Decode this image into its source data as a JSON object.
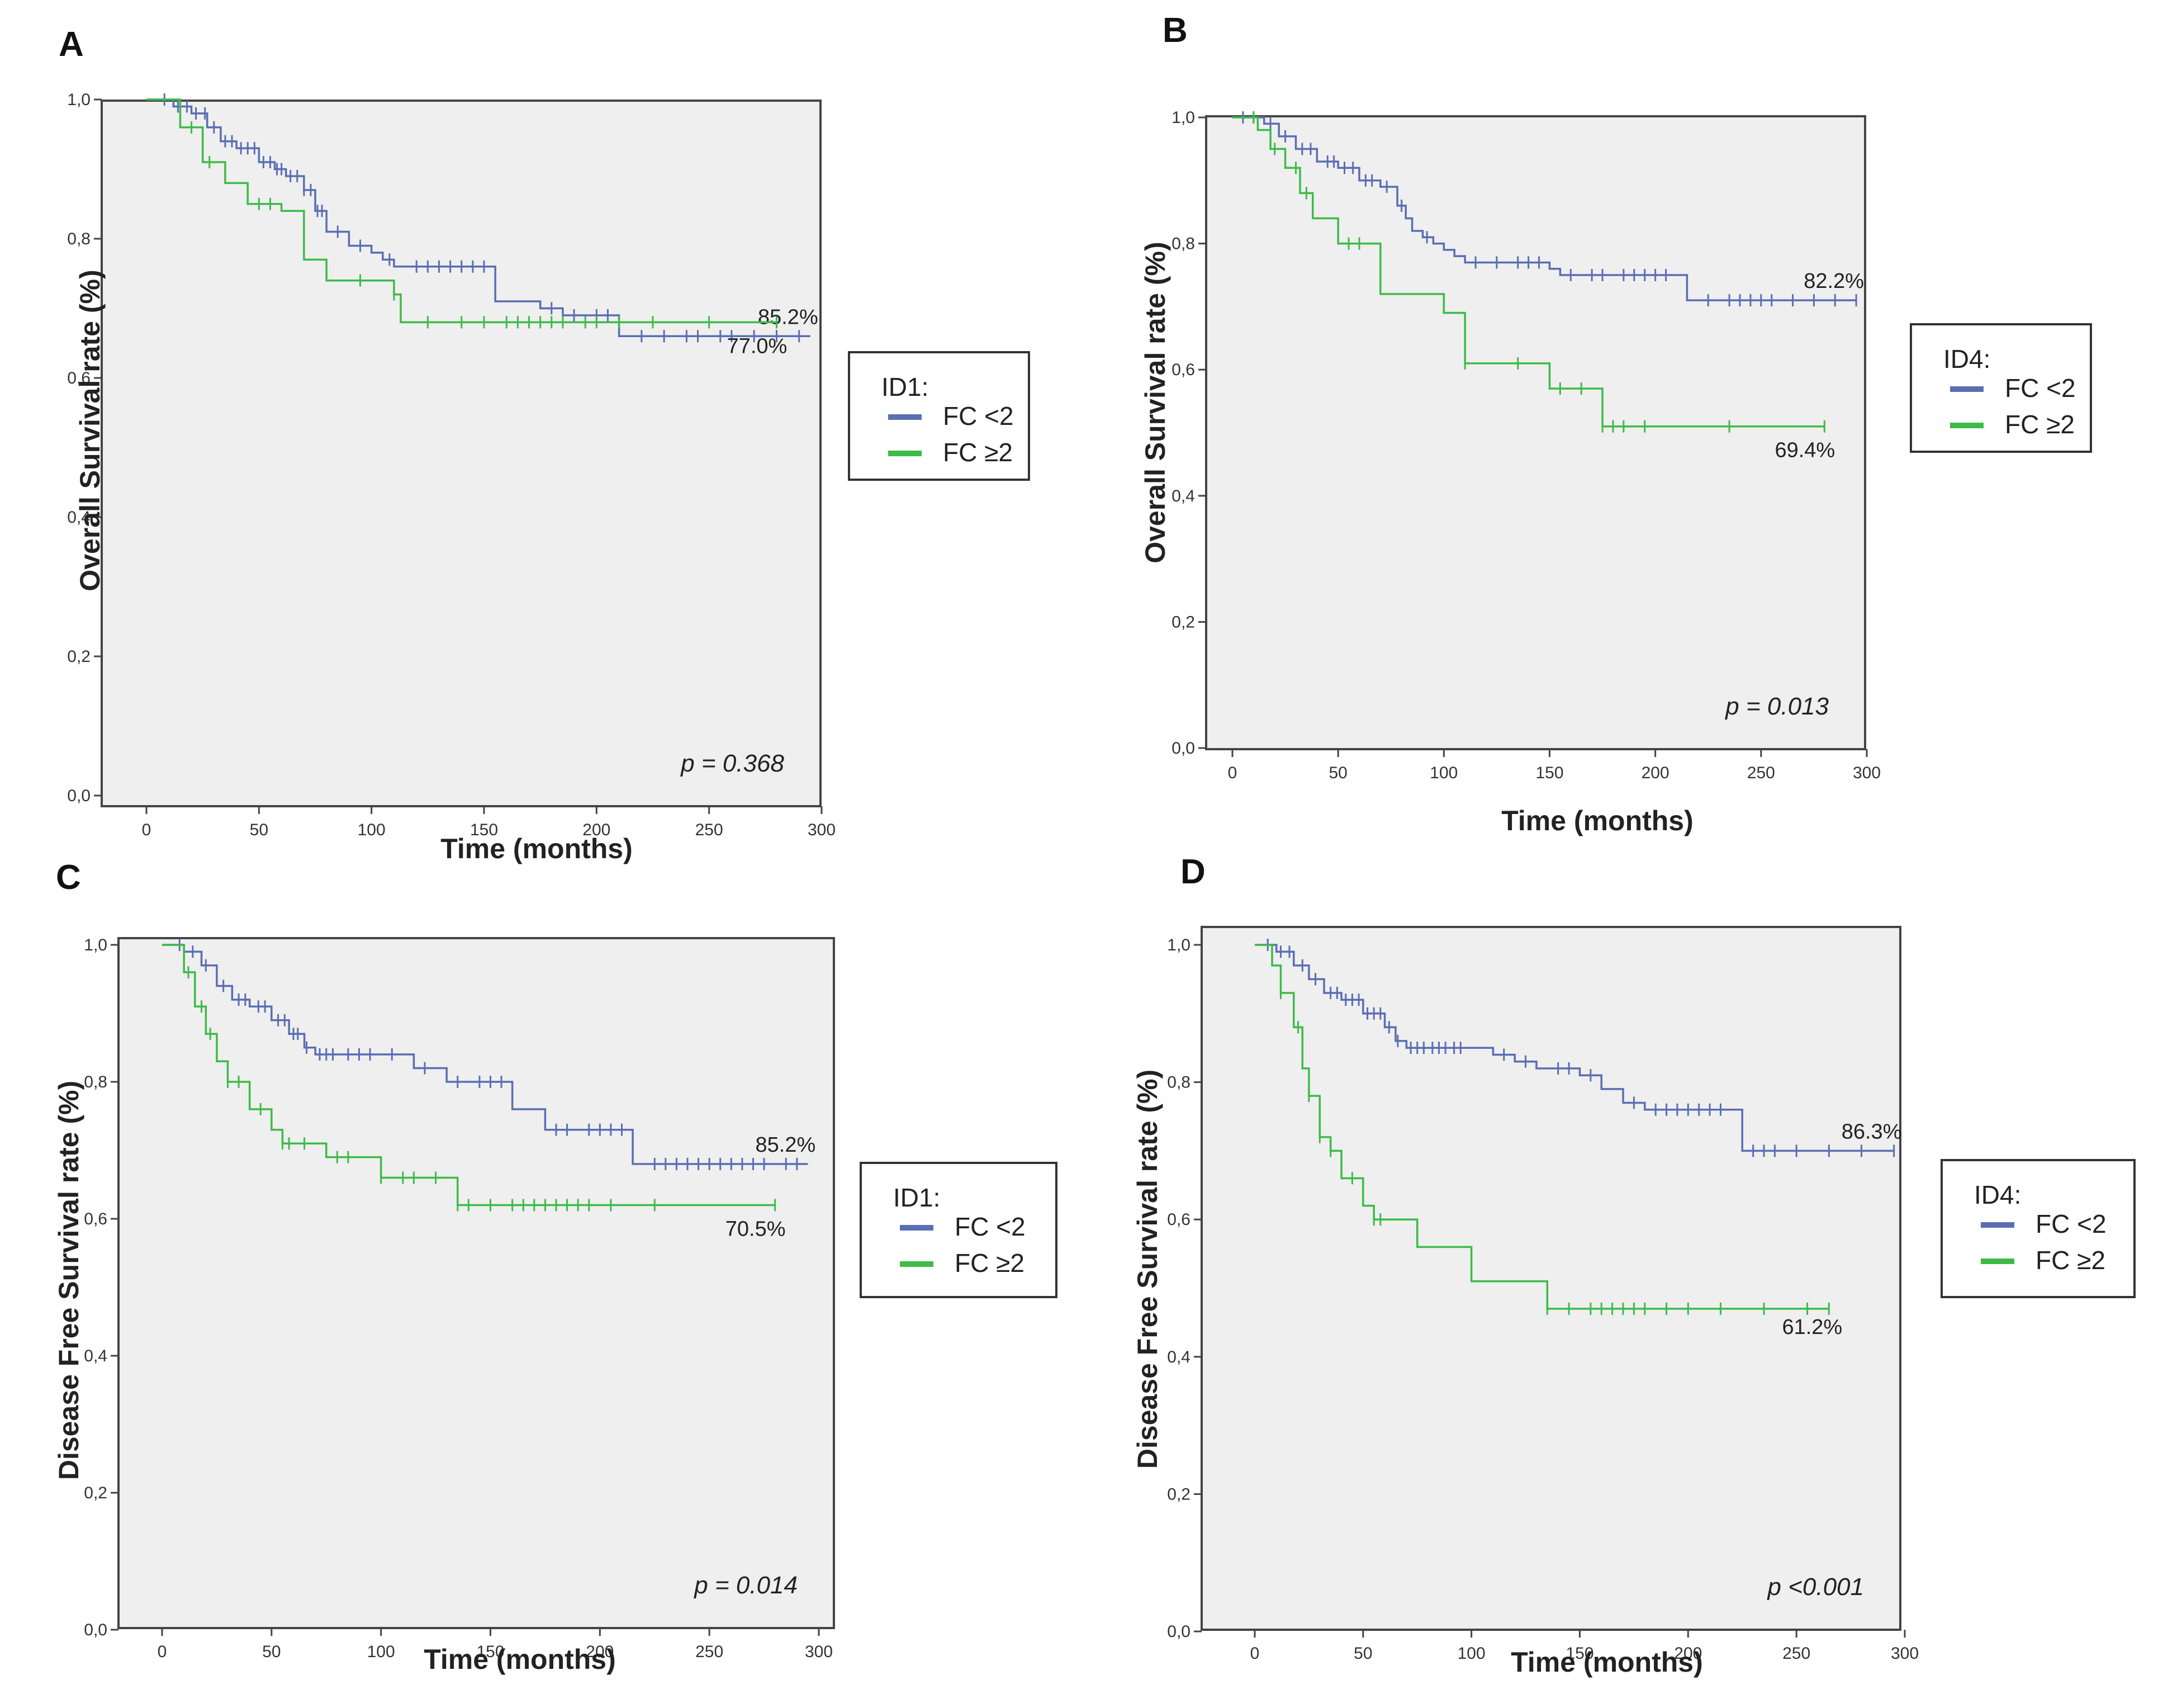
{
  "figure": {
    "panels": [
      {
        "letter": "A",
        "legend_title": "ID1:",
        "legend_items": [
          {
            "label": "FC <2",
            "color": "#5a6eb4"
          },
          {
            "label": "FC ≥2",
            "color": "#3dbb48"
          }
        ],
        "p_value": "p = 0.368"
      },
      {
        "letter": "B",
        "legend_title": "ID4:",
        "legend_items": [
          {
            "label": "FC <2",
            "color": "#5a6eb4"
          },
          {
            "label": "FC ≥2",
            "color": "#3dbb48"
          }
        ],
        "p_value": "p = 0.013"
      },
      {
        "letter": "C",
        "legend_title": "ID1:",
        "legend_items": [
          {
            "label": "FC <2",
            "color": "#5a6eb4"
          },
          {
            "label": "FC ≥2",
            "color": "#3dbb48"
          }
        ],
        "p_value": "p = 0.014"
      },
      {
        "letter": "D",
        "legend_title": "ID4:",
        "legend_items": [
          {
            "label": "FC <2",
            "color": "#5a6eb4"
          },
          {
            "label": "FC ≥2",
            "color": "#3dbb48"
          }
        ],
        "p_value": "p <0.001"
      }
    ]
  },
  "chart_data": [
    {
      "type": "line",
      "panel": "A",
      "step": true,
      "xlabel": "Time (months)",
      "ylabel": "Overall Survival rate (%)",
      "xlim": [
        0,
        300
      ],
      "ylim": [
        0,
        1
      ],
      "xticks": [
        "0",
        "50",
        "100",
        "150",
        "200",
        "250",
        "300"
      ],
      "yticks": [
        "0,0",
        "0,2",
        "0,4",
        "0,6",
        "0,8",
        "1,0"
      ],
      "series": [
        {
          "name": "FC <2",
          "color": "#5a6eb4",
          "end_label": "85.2%",
          "x": [
            0,
            12,
            20,
            27,
            33,
            40,
            50,
            57,
            62,
            70,
            75,
            80,
            90,
            100,
            105,
            110,
            150,
            155,
            175,
            185,
            195,
            210,
            295
          ],
          "y": [
            1.0,
            0.99,
            0.98,
            0.96,
            0.94,
            0.93,
            0.91,
            0.9,
            0.89,
            0.87,
            0.84,
            0.81,
            0.79,
            0.78,
            0.77,
            0.76,
            0.76,
            0.71,
            0.7,
            0.69,
            0.69,
            0.66,
            0.66
          ],
          "censor": [
            8,
            14,
            18,
            22,
            26,
            30,
            35,
            38,
            42,
            45,
            48,
            52,
            55,
            58,
            60,
            64,
            67,
            70,
            73,
            76,
            78,
            85,
            95,
            108,
            120,
            125,
            130,
            135,
            140,
            145,
            150,
            180,
            190,
            200,
            205,
            220,
            230,
            240,
            245,
            255,
            260,
            270,
            280,
            290
          ]
        },
        {
          "name": "FC ≥2",
          "color": "#3dbb48",
          "end_label": "77.0%",
          "x": [
            0,
            15,
            25,
            35,
            45,
            60,
            70,
            80,
            110,
            113,
            280
          ],
          "y": [
            1.0,
            0.96,
            0.91,
            0.88,
            0.85,
            0.84,
            0.77,
            0.74,
            0.72,
            0.68,
            0.68
          ],
          "censor": [
            20,
            28,
            50,
            55,
            95,
            110,
            125,
            140,
            150,
            160,
            165,
            170,
            175,
            180,
            185,
            195,
            200,
            210,
            225,
            250,
            280
          ]
        }
      ]
    },
    {
      "type": "line",
      "panel": "B",
      "step": true,
      "xlabel": "Time (months)",
      "ylabel": "Overall Survival rate (%)",
      "xlim": [
        0,
        300
      ],
      "ylim": [
        0,
        1
      ],
      "xticks": [
        "0",
        "50",
        "100",
        "150",
        "200",
        "250",
        "300"
      ],
      "yticks": [
        "0,0",
        "0,2",
        "0,4",
        "0,6",
        "0,8",
        "1,0"
      ],
      "series": [
        {
          "name": "FC <2",
          "color": "#5a6eb4",
          "end_label": "82.2%",
          "x": [
            0,
            15,
            22,
            30,
            40,
            50,
            60,
            70,
            78,
            82,
            85,
            90,
            95,
            100,
            105,
            110,
            120,
            130,
            150,
            155,
            160,
            210,
            215,
            295
          ],
          "y": [
            1.0,
            0.99,
            0.97,
            0.95,
            0.93,
            0.92,
            0.9,
            0.89,
            0.86,
            0.84,
            0.82,
            0.81,
            0.8,
            0.79,
            0.78,
            0.77,
            0.77,
            0.77,
            0.76,
            0.75,
            0.75,
            0.75,
            0.71,
            0.71
          ],
          "censor": [
            5,
            10,
            18,
            25,
            33,
            37,
            45,
            48,
            53,
            57,
            63,
            66,
            73,
            80,
            92,
            115,
            125,
            135,
            140,
            145,
            160,
            170,
            175,
            185,
            190,
            195,
            200,
            205,
            225,
            235,
            240,
            245,
            250,
            255,
            265,
            275,
            285,
            295
          ]
        },
        {
          "name": "FC ≥2",
          "color": "#3dbb48",
          "end_label": "69.4%",
          "x": [
            0,
            12,
            18,
            25,
            32,
            38,
            50,
            70,
            100,
            110,
            150,
            175,
            280
          ],
          "y": [
            1.0,
            0.98,
            0.95,
            0.92,
            0.88,
            0.84,
            0.8,
            0.72,
            0.69,
            0.61,
            0.57,
            0.51,
            0.51
          ],
          "censor": [
            10,
            20,
            30,
            35,
            55,
            60,
            110,
            135,
            155,
            165,
            175,
            180,
            185,
            195,
            235,
            280
          ]
        }
      ]
    },
    {
      "type": "line",
      "panel": "C",
      "step": true,
      "xlabel": "Time (months)",
      "ylabel": "Disease Free Survival rate (%)",
      "xlim": [
        0,
        300
      ],
      "ylim": [
        0,
        1
      ],
      "xticks": [
        "0",
        "50",
        "100",
        "150",
        "200",
        "250",
        "300"
      ],
      "yticks": [
        "0,0",
        "0,2",
        "0,4",
        "0,6",
        "0,8",
        "1,0"
      ],
      "series": [
        {
          "name": "FC <2",
          "color": "#5a6eb4",
          "end_label": "85.2%",
          "x": [
            0,
            10,
            18,
            25,
            32,
            40,
            50,
            58,
            65,
            70,
            110,
            115,
            130,
            140,
            160,
            175,
            190,
            215,
            220,
            295
          ],
          "y": [
            1.0,
            0.99,
            0.97,
            0.94,
            0.92,
            0.91,
            0.89,
            0.87,
            0.85,
            0.84,
            0.84,
            0.82,
            0.8,
            0.8,
            0.76,
            0.73,
            0.73,
            0.68,
            0.68,
            0.68
          ],
          "censor": [
            8,
            14,
            20,
            28,
            35,
            38,
            44,
            47,
            53,
            56,
            60,
            62,
            66,
            72,
            75,
            78,
            85,
            90,
            95,
            105,
            120,
            135,
            145,
            150,
            155,
            180,
            185,
            195,
            200,
            205,
            210,
            225,
            230,
            235,
            240,
            245,
            250,
            255,
            260,
            265,
            270,
            275,
            285,
            290
          ]
        },
        {
          "name": "FC ≥2",
          "color": "#3dbb48",
          "end_label": "70.5%",
          "x": [
            0,
            10,
            15,
            20,
            25,
            30,
            40,
            50,
            55,
            75,
            100,
            135,
            280
          ],
          "y": [
            1.0,
            0.96,
            0.91,
            0.87,
            0.83,
            0.8,
            0.76,
            0.73,
            0.71,
            0.69,
            0.66,
            0.62,
            0.62
          ],
          "censor": [
            12,
            18,
            22,
            30,
            35,
            45,
            55,
            58,
            65,
            80,
            85,
            100,
            110,
            115,
            125,
            135,
            140,
            150,
            160,
            165,
            170,
            175,
            180,
            185,
            190,
            195,
            205,
            225,
            280
          ]
        }
      ]
    },
    {
      "type": "line",
      "panel": "D",
      "step": true,
      "xlabel": "Time (months)",
      "ylabel": "Disease Free Survival rate (%)",
      "xlim": [
        0,
        300
      ],
      "ylim": [
        0,
        1
      ],
      "xticks": [
        "0",
        "50",
        "100",
        "150",
        "200",
        "250",
        "300"
      ],
      "yticks": [
        "0,0",
        "0,2",
        "0,4",
        "0,6",
        "0,8",
        "1,0"
      ],
      "series": [
        {
          "name": "FC <2",
          "color": "#5a6eb4",
          "end_label": "86.3%",
          "x": [
            0,
            10,
            18,
            25,
            32,
            40,
            50,
            60,
            65,
            70,
            100,
            110,
            120,
            130,
            150,
            160,
            170,
            180,
            220,
            225,
            295
          ],
          "y": [
            1.0,
            0.99,
            0.97,
            0.95,
            0.93,
            0.92,
            0.9,
            0.88,
            0.86,
            0.85,
            0.85,
            0.84,
            0.83,
            0.82,
            0.81,
            0.79,
            0.77,
            0.76,
            0.76,
            0.7,
            0.7
          ],
          "censor": [
            6,
            12,
            16,
            22,
            28,
            35,
            38,
            42,
            45,
            48,
            52,
            55,
            58,
            62,
            66,
            72,
            75,
            78,
            82,
            85,
            88,
            92,
            95,
            115,
            125,
            140,
            145,
            155,
            175,
            185,
            190,
            195,
            200,
            205,
            210,
            215,
            230,
            235,
            240,
            250,
            265,
            280,
            295
          ]
        },
        {
          "name": "FC ≥2",
          "color": "#3dbb48",
          "end_label": "61.2%",
          "x": [
            0,
            8,
            12,
            18,
            22,
            25,
            30,
            35,
            40,
            50,
            55,
            75,
            100,
            135,
            265
          ],
          "y": [
            1.0,
            0.97,
            0.93,
            0.88,
            0.82,
            0.78,
            0.72,
            0.7,
            0.66,
            0.62,
            0.6,
            0.56,
            0.51,
            0.47,
            0.47
          ],
          "censor": [
            12,
            20,
            25,
            30,
            35,
            45,
            55,
            58,
            135,
            145,
            155,
            160,
            165,
            170,
            175,
            180,
            190,
            200,
            215,
            235,
            255,
            265
          ]
        }
      ]
    }
  ]
}
